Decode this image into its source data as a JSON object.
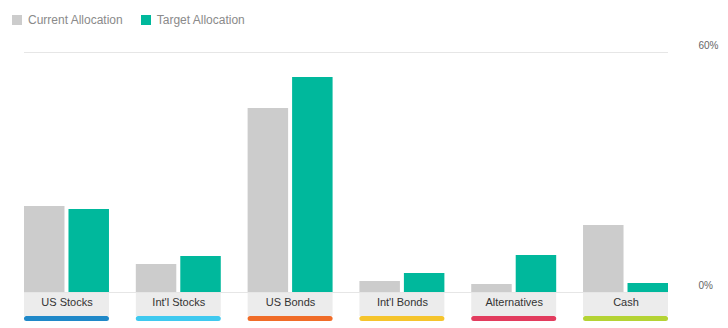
{
  "chart_data": {
    "type": "bar",
    "categories": [
      "US Stocks",
      "Int'l Stocks",
      "US Bonds",
      "Int'l Bonds",
      "Alternatives",
      "Cash"
    ],
    "series": [
      {
        "name": "Current Allocation",
        "color": "#cccccc",
        "values": [
          21.5,
          7,
          46,
          2.75,
          2,
          16.75
        ]
      },
      {
        "name": "Target Allocation",
        "color": "#00b89c",
        "values": [
          20.75,
          9,
          53.75,
          4.75,
          9.25,
          2.25
        ]
      }
    ],
    "ylim": [
      0,
      60
    ],
    "yticks": [
      {
        "value": 0,
        "label": "0%"
      },
      {
        "value": 60,
        "label": "60%"
      }
    ],
    "grid": true,
    "legend": "top-left"
  }
}
